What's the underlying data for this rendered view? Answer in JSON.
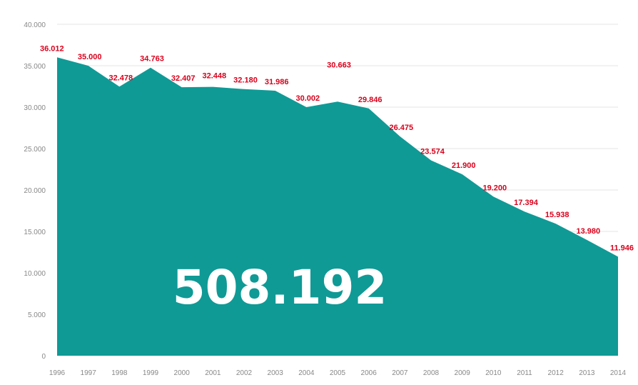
{
  "chart_data": {
    "type": "area",
    "title": "",
    "xlabel": "",
    "ylabel": "",
    "x": [
      "1996",
      "1997",
      "1998",
      "1999",
      "2000",
      "2001",
      "2002",
      "2003",
      "2004",
      "2005",
      "2006",
      "2007",
      "2008",
      "2009",
      "2010",
      "2011",
      "2012",
      "2013",
      "2014"
    ],
    "values": [
      36012,
      35000,
      32478,
      34763,
      32407,
      32448,
      32180,
      31986,
      30002,
      30663,
      29846,
      26475,
      23574,
      21900,
      19200,
      17394,
      15938,
      13980,
      11946
    ],
    "data_labels": [
      "36.012",
      "35.000",
      "32.478",
      "34.763",
      "32.407",
      "32.448",
      "32.180",
      "31.986",
      "30.002",
      "30.663",
      "29.846",
      "26.475",
      "23.574",
      "21.900",
      "19.200",
      "17.394",
      "15.938",
      "13.980",
      "11.946"
    ],
    "yticks": [
      0,
      5000,
      10000,
      15000,
      20000,
      25000,
      30000,
      35000,
      40000
    ],
    "ytick_labels": [
      "0",
      "5.000",
      "10.000",
      "15.000",
      "20.000",
      "25.000",
      "30.000",
      "35.000",
      "40.000"
    ],
    "ylim": [
      0,
      40000
    ],
    "grid": true,
    "legend": "none",
    "total_label": "508.192",
    "colors": {
      "area": "#0f9a96",
      "data_label": "#d9001b",
      "grid": "#e6e6e6",
      "tick": "#888888",
      "total": "#ffffff"
    }
  }
}
